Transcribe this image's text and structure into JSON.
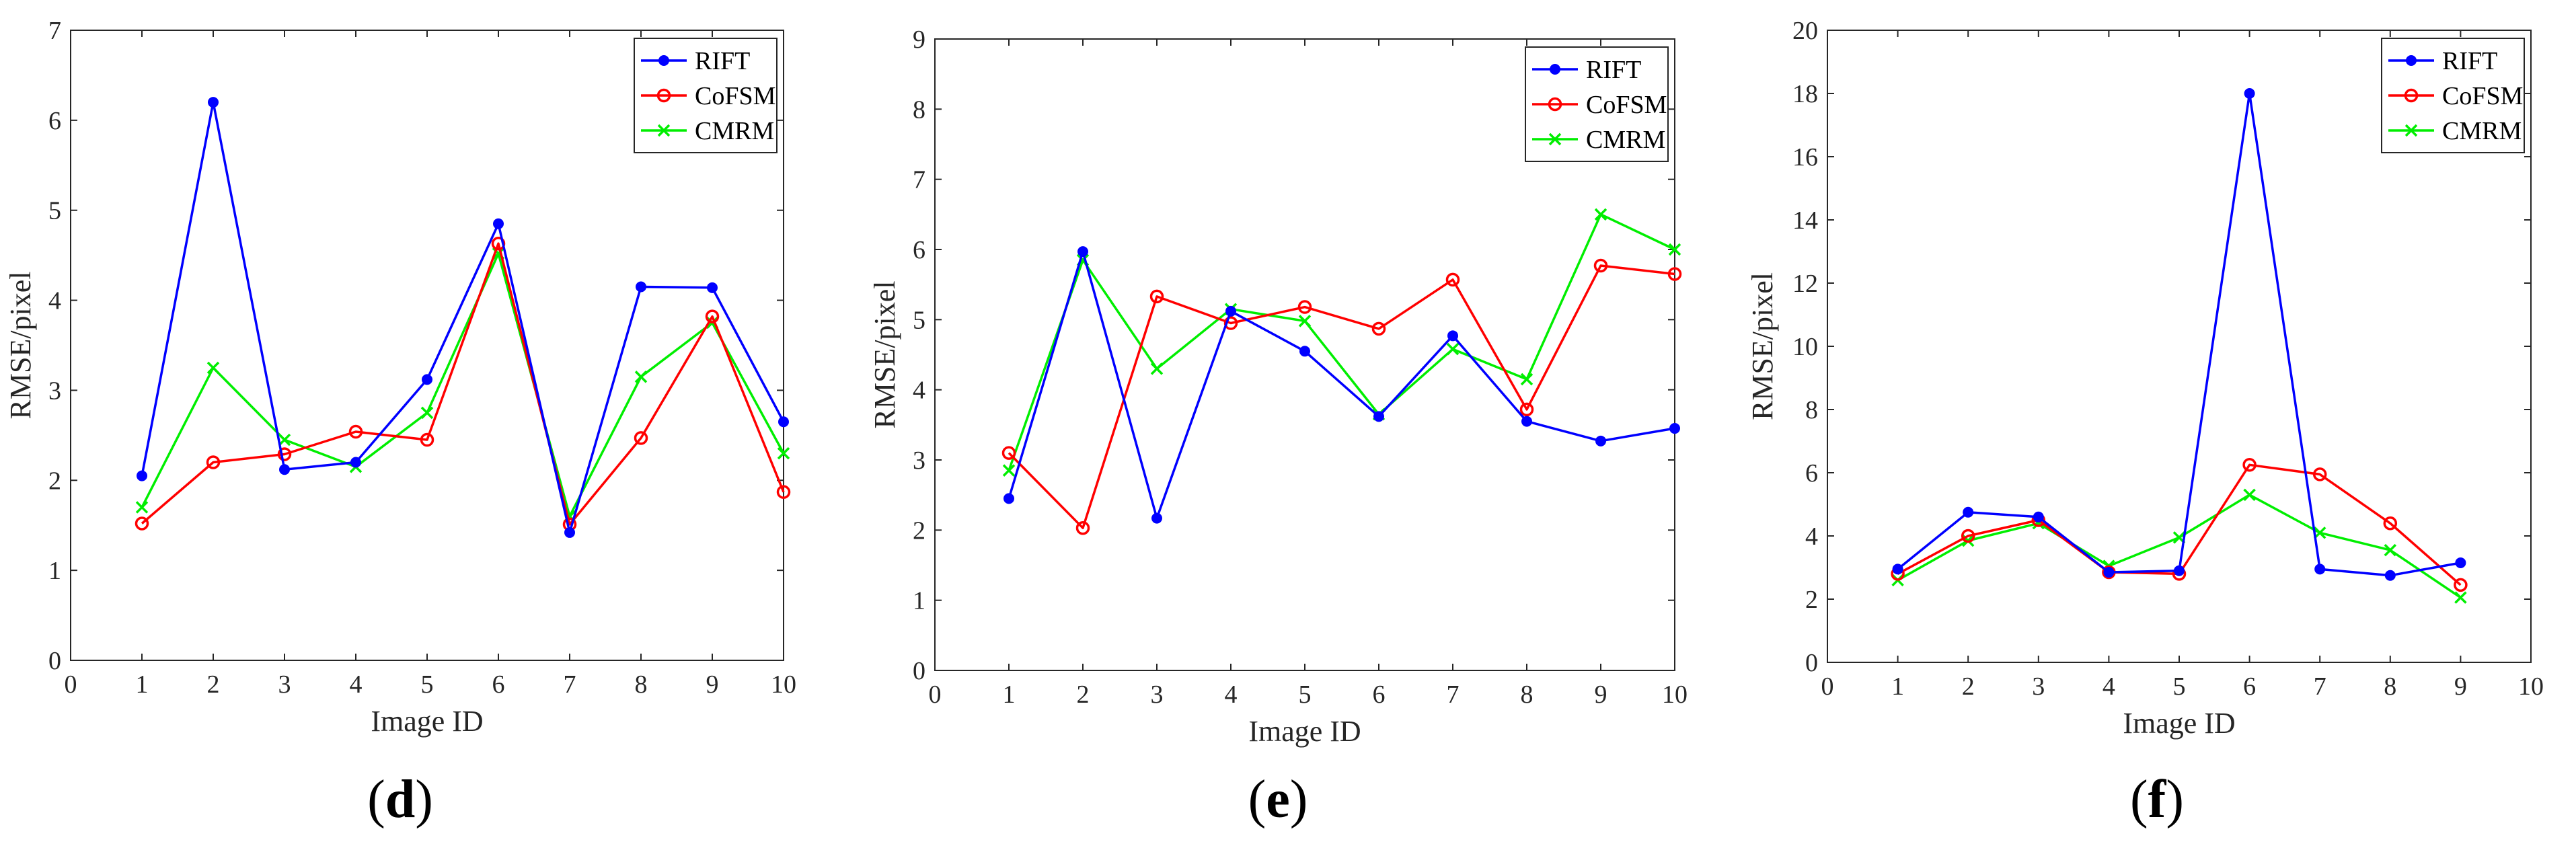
{
  "chart_data": [
    {
      "type": "line",
      "panel_label": "d",
      "xlabel": "Image ID",
      "ylabel": "RMSE/pixel",
      "xlim": [
        0,
        10
      ],
      "ylim": [
        0,
        7
      ],
      "xticks": [
        "0",
        "1",
        "2",
        "3",
        "4",
        "5",
        "6",
        "7",
        "8",
        "9",
        "10"
      ],
      "yticks": [
        "0",
        "1",
        "2",
        "3",
        "4",
        "5",
        "6",
        "7"
      ],
      "legend_position": "top-right",
      "series": [
        {
          "name": "RIFT",
          "color": "#0000ff",
          "marker": "dot",
          "x": [
            1,
            2,
            3,
            4,
            5,
            6,
            7,
            8,
            9,
            10
          ],
          "values": [
            2.05,
            6.2,
            2.12,
            2.2,
            3.12,
            4.85,
            1.42,
            4.15,
            4.14,
            2.65
          ]
        },
        {
          "name": "CoFSM",
          "color": "#ff0000",
          "marker": "circle",
          "x": [
            1,
            2,
            3,
            4,
            5,
            6,
            7,
            8,
            9,
            10
          ],
          "values": [
            1.52,
            2.2,
            2.29,
            2.54,
            2.45,
            4.63,
            1.51,
            2.47,
            3.82,
            1.87
          ]
        },
        {
          "name": "CMRM",
          "color": "#00ee00",
          "marker": "x",
          "x": [
            1,
            2,
            3,
            4,
            5,
            6,
            7,
            8,
            9,
            10
          ],
          "values": [
            1.7,
            3.25,
            2.45,
            2.15,
            2.75,
            4.52,
            1.6,
            3.15,
            3.75,
            2.3
          ]
        }
      ]
    },
    {
      "type": "line",
      "panel_label": "e",
      "xlabel": "Image ID",
      "ylabel": "RMSE/pixel",
      "xlim": [
        0,
        10
      ],
      "ylim": [
        0,
        9
      ],
      "xticks": [
        "0",
        "1",
        "2",
        "3",
        "4",
        "5",
        "6",
        "7",
        "8",
        "9",
        "10"
      ],
      "yticks": [
        "0",
        "1",
        "2",
        "3",
        "4",
        "5",
        "6",
        "7",
        "8",
        "9"
      ],
      "legend_position": "top-right",
      "series": [
        {
          "name": "RIFT",
          "color": "#0000ff",
          "marker": "dot",
          "x": [
            1,
            2,
            3,
            4,
            5,
            6,
            7,
            8,
            9,
            10
          ],
          "values": [
            2.45,
            5.97,
            2.17,
            5.12,
            4.55,
            3.62,
            4.77,
            3.55,
            3.27,
            3.45
          ]
        },
        {
          "name": "CoFSM",
          "color": "#ff0000",
          "marker": "circle",
          "x": [
            1,
            2,
            3,
            4,
            5,
            6,
            7,
            8,
            9,
            10
          ],
          "values": [
            3.1,
            2.03,
            5.33,
            4.95,
            5.18,
            4.87,
            5.57,
            3.72,
            5.77,
            5.65
          ]
        },
        {
          "name": "CMRM",
          "color": "#00ee00",
          "marker": "x",
          "x": [
            1,
            2,
            3,
            4,
            5,
            6,
            7,
            8,
            9,
            10
          ],
          "values": [
            2.85,
            5.85,
            4.3,
            5.15,
            4.98,
            3.65,
            4.58,
            4.15,
            6.5,
            6.0
          ]
        }
      ]
    },
    {
      "type": "line",
      "panel_label": "f",
      "xlabel": "Image ID",
      "ylabel": "RMSE/pixel",
      "xlim": [
        0,
        10
      ],
      "ylim": [
        0,
        20
      ],
      "xticks": [
        "0",
        "1",
        "2",
        "3",
        "4",
        "5",
        "6",
        "7",
        "8",
        "9",
        "10"
      ],
      "yticks": [
        "0",
        "2",
        "4",
        "6",
        "8",
        "10",
        "12",
        "14",
        "16",
        "18",
        "20"
      ],
      "legend_position": "top-right",
      "series": [
        {
          "name": "RIFT",
          "color": "#0000ff",
          "marker": "dot",
          "x": [
            1,
            2,
            3,
            4,
            5,
            6,
            7,
            8,
            9
          ],
          "values": [
            2.95,
            4.75,
            4.6,
            2.85,
            2.9,
            18.0,
            2.95,
            2.75,
            3.15
          ]
        },
        {
          "name": "CoFSM",
          "color": "#ff0000",
          "marker": "circle",
          "x": [
            1,
            2,
            3,
            4,
            5,
            6,
            7,
            8,
            9
          ],
          "values": [
            2.8,
            4.0,
            4.5,
            2.85,
            2.8,
            6.25,
            5.95,
            4.4,
            2.45
          ]
        },
        {
          "name": "CMRM",
          "color": "#00ee00",
          "marker": "x",
          "x": [
            1,
            2,
            3,
            4,
            5,
            6,
            7,
            8,
            9
          ],
          "values": [
            2.6,
            3.85,
            4.4,
            3.05,
            3.95,
            5.3,
            4.1,
            3.55,
            2.05
          ]
        }
      ]
    }
  ]
}
